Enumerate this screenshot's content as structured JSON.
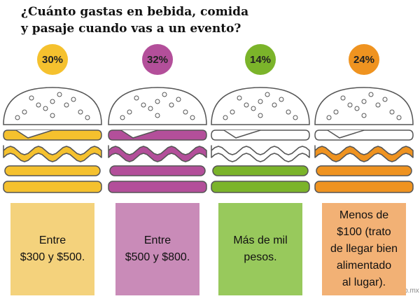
{
  "chart_data": {
    "type": "pictograph",
    "title": [
      "¿Cuánto gastas en bebida, comida",
      "y pasaje cuando vas a un evento?"
    ],
    "categories": [
      [
        "Entre",
        "$300 y $500."
      ],
      [
        "Entre",
        "$500 y $800."
      ],
      [
        "Más de mil",
        "pesos."
      ],
      [
        "Menos de",
        "$100 (trato",
        "de llegar bien",
        "alimentado",
        "al lugar)."
      ]
    ],
    "values": [
      30,
      32,
      14,
      24
    ],
    "value_labels": [
      "30%",
      "32%",
      "14%",
      "24%"
    ],
    "colors": [
      "#f5c12e",
      "#b34f9a",
      "#7bb42a",
      "#ef9320"
    ],
    "box_colors": [
      "#f4d27c",
      "#c98bb8",
      "#98c95c",
      "#f2b175"
    ],
    "source": "gob.mx"
  }
}
